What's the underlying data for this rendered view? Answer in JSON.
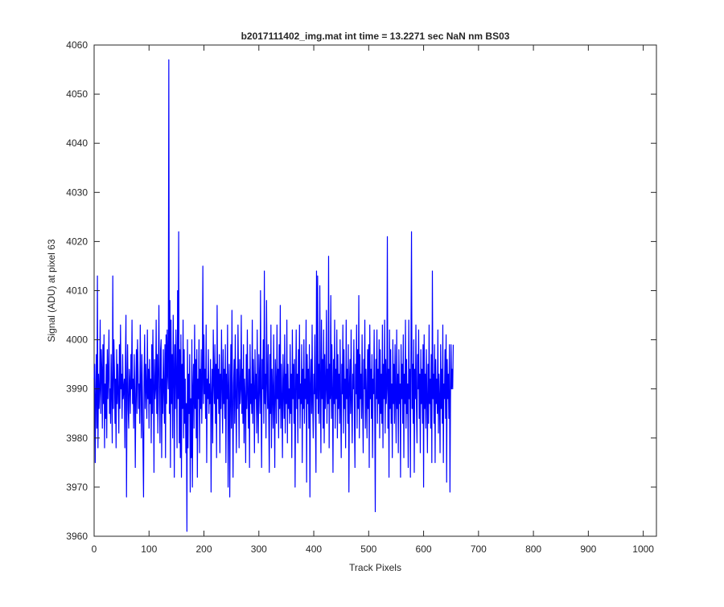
{
  "chart_data": {
    "type": "line",
    "title": "b2017111402_img.mat int time = 13.2271 sec  NaN nm BS03",
    "xlabel": "Track Pixels",
    "ylabel": "Signal (ADU) at pixel 63",
    "xlim": [
      0,
      1024
    ],
    "ylim": [
      3960,
      4060
    ],
    "xticks": [
      "0",
      "100",
      "200",
      "300",
      "400",
      "500",
      "600",
      "700",
      "800",
      "900",
      "1000"
    ],
    "yticks": [
      "3960",
      "3970",
      "3980",
      "3990",
      "4000",
      "4010",
      "4020",
      "4030",
      "4040",
      "4050",
      "4060"
    ],
    "grid": false,
    "box": true,
    "series_color": "#0000ff",
    "series": [
      {
        "x_start": 0,
        "x_step": 1,
        "values": [
          3992,
          3995,
          3975,
          3988,
          3997,
          3982,
          4013,
          3978,
          3993,
          3986,
          3990,
          4004,
          3985,
          3998,
          3994,
          3982,
          3999,
          3987,
          4001,
          3978,
          3991,
          3984,
          3995,
          3980,
          3998,
          3988,
          3993,
          4002,
          3985,
          3990,
          3983,
          3997,
          3989,
          3979,
          4013,
          3986,
          4000,
          3994,
          3983,
          3992,
          3978,
          3998,
          3987,
          3995,
          3989,
          3981,
          3999,
          3986,
          4003,
          3990,
          3993,
          3984,
          3997,
          3988,
          3990,
          3992,
          3978,
          3996,
          4005,
          3968,
          3990,
          3999,
          3986,
          3982,
          3994,
          3991,
          3985,
          3997,
          3990,
          4004,
          3987,
          3992,
          3982,
          3997,
          3989,
          3974,
          3990,
          3998,
          3985,
          4000,
          3994,
          3986,
          3991,
          3983,
          4003,
          3992,
          3980,
          3997,
          3989,
          3978,
          3968,
          3993,
          4001,
          3986,
          3995,
          3990,
          3984,
          4002,
          3988,
          3994,
          3982,
          3996,
          3987,
          3992,
          3979,
          3999,
          3985,
          4002,
          3991,
          3973,
          3996,
          3988,
          3990,
          4004,
          3985,
          3997,
          3981,
          3994,
          4007,
          3987,
          3979,
          3998,
          4000,
          3976,
          3992,
          3985,
          3998,
          3990,
          3983,
          3999,
          3976,
          4001,
          3987,
          4002,
          3993,
          3990,
          4057,
          3985,
          4008,
          3974,
          4004,
          3987,
          3997,
          3980,
          4005,
          3995,
          3972,
          3999,
          3986,
          4002,
          3992,
          3978,
          4010,
          3988,
          4022,
          3979,
          3998,
          3976,
          4001,
          3972,
          3995,
          3986,
          4004,
          3980,
          3998,
          3983,
          3992,
          3977,
          3987,
          3961,
          4000,
          3978,
          3993,
          3985,
          3997,
          3969,
          3988,
          3976,
          4000,
          3970,
          3990,
          3995,
          3982,
          4003,
          3986,
          3996,
          3980,
          3998,
          3972,
          3992,
          3988,
          4000,
          3977,
          3994,
          3986,
          3998,
          3983,
          3991,
          4015,
          3987,
          4001,
          3989,
          3994,
          3984,
          4003,
          3975,
          3992,
          3988,
          3998,
          3985,
          3991,
          3987,
          3996,
          3969,
          3989,
          3994,
          3979,
          4002,
          3992,
          3987,
          3999,
          3983,
          3995,
          3976,
          4007,
          3988,
          3994,
          3985,
          3997,
          3977,
          3993,
          3986,
          4002,
          3990,
          3981,
          3998,
          3987,
          3994,
          3984,
          3999,
          3975,
          3993,
          3988,
          4003,
          3970,
          3990,
          3995,
          3968,
          3987,
          3999,
          3982,
          4006,
          3987,
          3972,
          3991,
          3996,
          3983,
          4001,
          3989,
          3977,
          3994,
          3986,
          4003,
          3991,
          3978,
          3996,
          3987,
          3990,
          4005,
          3985,
          3994,
          3983,
          3999,
          3979,
          3992,
          3988,
          3975,
          3997,
          3986,
          4002,
          3989,
          3982,
          3994,
          3974,
          3999,
          3987,
          3991,
          3985,
          4004,
          3983,
          3996,
          3990,
          3977,
          3998,
          3988,
          3993,
          3981,
          4002,
          3986,
          3979,
          3997,
          3991,
          3985,
          4010,
          3988,
          3974,
          3996,
          3990,
          4000,
          3983,
          4014,
          3987,
          3993,
          3980,
          4008,
          3992,
          3986,
          3999,
          3984,
          3973,
          3997,
          3985,
          4003,
          3978,
          3994,
          3989,
          3982,
          4001,
          3987,
          3974,
          3996,
          3991,
          3983,
          4003,
          3988,
          3994,
          3980,
          3999,
          3986,
          4007,
          3982,
          3995,
          3988,
          3976,
          3997,
          3990,
          3984,
          4001,
          3981,
          3993,
          3987,
          4004,
          3979,
          3995,
          3986,
          3990,
          3983,
          3999,
          3985,
          3993,
          3976,
          4002,
          3988,
          3995,
          3983,
          3996,
          3970,
          3990,
          4002,
          3986,
          3993,
          3979,
          3998,
          3988,
          4003,
          3982,
          3991,
          3987,
          3999,
          3975,
          3994,
          3986,
          4000,
          3983,
          3992,
          3988,
          4004,
          3971,
          3997,
          3987,
          3994,
          3982,
          3999,
          3968,
          3991,
          3996,
          3985,
          4003,
          3987,
          3980,
          3993,
          3989,
          4001,
          3984,
          3973,
          4014,
          3988,
          4013,
          3985,
          3995,
          3983,
          4011,
          3990,
          3977,
          4004,
          3988,
          3996,
          3982,
          4002,
          3979,
          3997,
          3986,
          3990,
          4006,
          3983,
          3994,
          3987,
          4017,
          3978,
          3995,
          3988,
          4009,
          3984,
          3999,
          3990,
          3973,
          3996,
          3987,
          4004,
          3982,
          3994,
          3988,
          4002,
          3980,
          3997,
          3986,
          3993,
          3983,
          4000,
          3987,
          3976,
          3995,
          3989,
          4003,
          3981,
          3998,
          3986,
          3992,
          3978,
          4004,
          3988,
          3994,
          3983,
          3999,
          3969,
          3991,
          3996,
          3985,
          4002,
          3987,
          3979,
          3993,
          3990,
          4000,
          3984,
          3974,
          3995,
          3989,
          4003,
          3982,
          3998,
          3986,
          4009,
          3980,
          3997,
          3988,
          3993,
          3984,
          4001,
          3987,
          3977,
          3996,
          3990,
          4004,
          3982,
          3994,
          3988,
          3980,
          3998,
          3986,
          3999,
          3974,
          4003,
          3988,
          3994,
          3984,
          3997,
          3976,
          3992,
          3989,
          4002,
          3986,
          3965,
          3996,
          3988,
          4002,
          3983,
          3994,
          3987,
          4000,
          3980,
          3998,
          3985,
          3993,
          3983,
          4003,
          3978,
          3995,
          3988,
          4004,
          3981,
          3996,
          3987,
          3990,
          4021,
          3982,
          3994,
          3972,
          4002,
          3986,
          3998,
          3983,
          3991,
          3976,
          4000,
          3987,
          3995,
          3983,
          3999,
          3988,
          3979,
          4002,
          3986,
          3993,
          3977,
          3998,
          3987,
          3991,
          3972,
          3999,
          3988,
          3995,
          3983,
          4001,
          3976,
          3993,
          3987,
          4004,
          3982,
          3996,
          3985,
          3991,
          3974,
          4004,
          3988,
          3994,
          3972,
          3999,
          4022,
          3986,
          3995,
          3983,
          4000,
          3973,
          3994,
          3988,
          4003,
          3986,
          3979,
          3997,
          3990,
          4002,
          3984,
          3993,
          3977,
          3998,
          3987,
          3994,
          3983,
          3999,
          3970,
          4001,
          3986,
          3993,
          3982,
          3998,
          3988,
          3977,
          3995,
          3983,
          4003,
          3987,
          3992,
          3982,
          3997,
          3975,
          4014,
          3988,
          3993,
          3983,
          3999,
          3975,
          3996,
          3987,
          3992,
          3985,
          4002,
          3981,
          3993,
          3988,
          3977,
          3999,
          3986,
          3994,
          3983,
          4003,
          3975,
          3991,
          3988,
          3998,
          3984,
          4001,
          3971,
          3996,
          3988,
          3993,
          3984,
          3999,
          3969,
          3988,
          3999,
          3990,
          3994,
          3990,
          3999
        ]
      }
    ]
  }
}
